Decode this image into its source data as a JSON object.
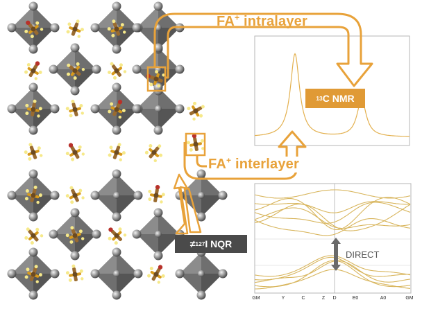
{
  "labels": {
    "intralayer": {
      "pre": "FA",
      "sup": "+",
      "post": " intralayer"
    },
    "interlayer": {
      "pre": "FA",
      "sup": "+",
      "post": " interlayer"
    },
    "nmr": {
      "sup": "13",
      "post": "C NMR"
    },
    "nqr": {
      "pre": "≠ ",
      "sup": "127",
      "post": "I NQR"
    },
    "direct": "DIRECT"
  },
  "band_ticks": [
    "GM",
    "Y",
    "C",
    "Z",
    "D",
    "E0",
    "A0",
    "GM"
  ],
  "colors": {
    "accent": "#e8a23a",
    "nmr_box": "#e09a35",
    "nqr_box": "#4a4a4a",
    "octahedron": "#6f6f6f",
    "band_line": "#d8b55c",
    "direct_arrow": "#6a6a6a"
  },
  "icons": [
    "octahedron-lattice",
    "formamidinium-molecule",
    "double-arrow-icon"
  ]
}
